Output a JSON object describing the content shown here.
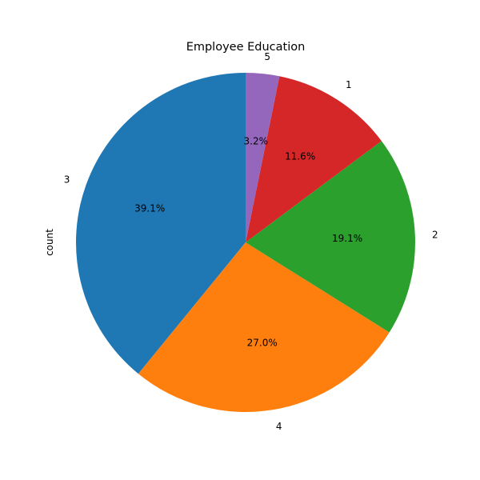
{
  "chart_data": {
    "type": "pie",
    "title": "Employee Education",
    "ylabel": "count",
    "xlabel": "",
    "categories": [
      "3",
      "4",
      "2",
      "1",
      "5"
    ],
    "values": [
      39.1,
      27.0,
      19.1,
      11.6,
      3.2
    ],
    "percent_labels": [
      "39.1%",
      "27.0%",
      "19.1%",
      "11.6%",
      "3.2%"
    ],
    "colors": [
      "#1f77b4",
      "#ff7f0e",
      "#2ca02c",
      "#d62728",
      "#9467bd"
    ],
    "start_angle_deg": 90,
    "direction": "counterclockwise"
  }
}
